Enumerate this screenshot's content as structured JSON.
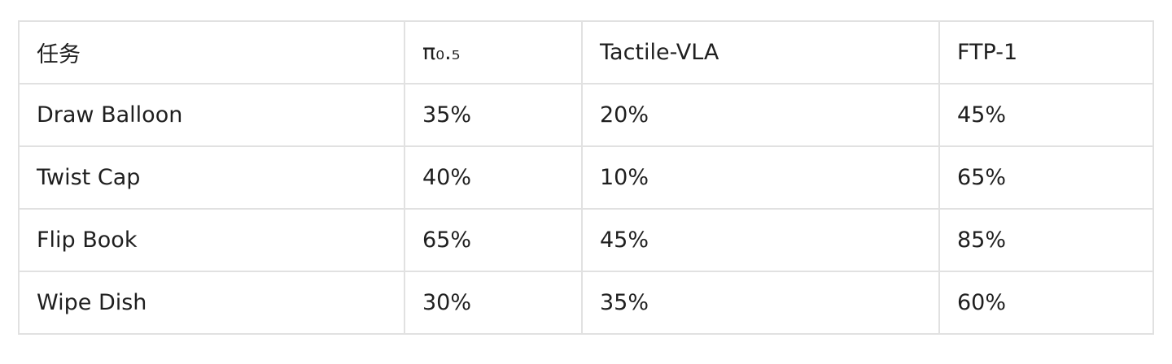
{
  "table": {
    "header": [
      "任务",
      "π₀.₅",
      "Tactile-VLA",
      "FTP-1"
    ],
    "rows": [
      [
        "Draw Balloon",
        "35%",
        "20%",
        "45%"
      ],
      [
        "Twist Cap",
        "40%",
        "10%",
        "65%"
      ],
      [
        "Flip Book",
        "65%",
        "45%",
        "85%"
      ],
      [
        "Wipe Dish",
        "30%",
        "35%",
        "60%"
      ]
    ]
  }
}
